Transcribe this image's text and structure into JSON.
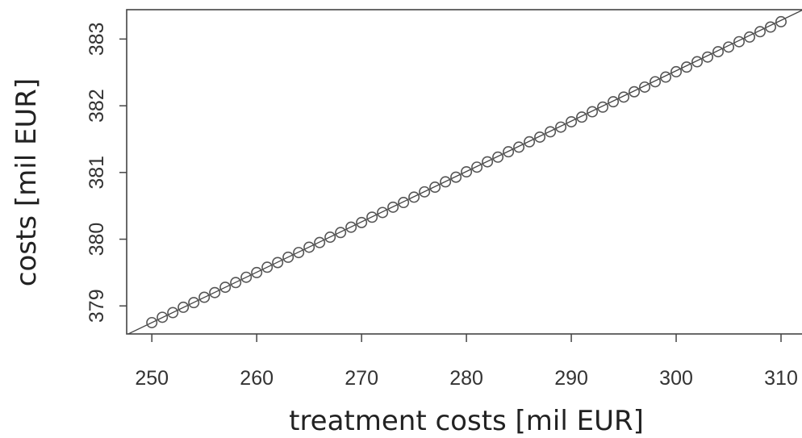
{
  "chart_data": {
    "type": "scatter",
    "title": "",
    "xlabel": "treatment costs [mil EUR]",
    "ylabel": "costs [mil EUR]",
    "xlim": [
      247.6,
      312.0
    ],
    "ylim": [
      378.58,
      383.44
    ],
    "x_ticks": [
      250,
      260,
      270,
      280,
      290,
      300,
      310
    ],
    "y_ticks": [
      379,
      380,
      381,
      382,
      383
    ],
    "x_tick_labels": [
      "250",
      "260",
      "270",
      "280",
      "290",
      "300",
      "310"
    ],
    "y_tick_labels": [
      "379",
      "380",
      "381",
      "382",
      "383"
    ],
    "grid": false,
    "marker": "open-circle",
    "point_color": "#555555",
    "line": {
      "type": "fitted",
      "slope": 0.0755,
      "intercept": 359.875,
      "color": "#444444"
    },
    "series": [
      {
        "x": [
          250,
          251,
          252,
          253,
          254,
          255,
          256,
          257,
          258,
          259,
          260,
          261,
          262,
          263,
          264,
          265,
          266,
          267,
          268,
          269,
          270,
          271,
          272,
          273,
          274,
          275,
          276,
          277,
          278,
          279,
          280,
          281,
          282,
          283,
          284,
          285,
          286,
          287,
          288,
          289,
          290,
          291,
          292,
          293,
          294,
          295,
          296,
          297,
          298,
          299,
          300,
          301,
          302,
          303,
          304,
          305,
          306,
          307,
          308,
          309,
          310
        ],
        "y": [
          378.75,
          378.83,
          378.9,
          378.98,
          379.05,
          379.13,
          379.2,
          379.28,
          379.35,
          379.43,
          379.5,
          379.58,
          379.65,
          379.73,
          379.8,
          379.88,
          379.95,
          380.03,
          380.1,
          380.18,
          380.25,
          380.33,
          380.4,
          380.48,
          380.55,
          380.63,
          380.71,
          380.78,
          380.86,
          380.93,
          381.01,
          381.08,
          381.16,
          381.23,
          381.31,
          381.38,
          381.46,
          381.53,
          381.61,
          381.68,
          381.76,
          381.83,
          381.91,
          381.98,
          382.06,
          382.13,
          382.21,
          382.28,
          382.36,
          382.43,
          382.51,
          382.58,
          382.66,
          382.73,
          382.81,
          382.88,
          382.96,
          383.03,
          383.11,
          383.18,
          383.26
        ]
      }
    ]
  }
}
